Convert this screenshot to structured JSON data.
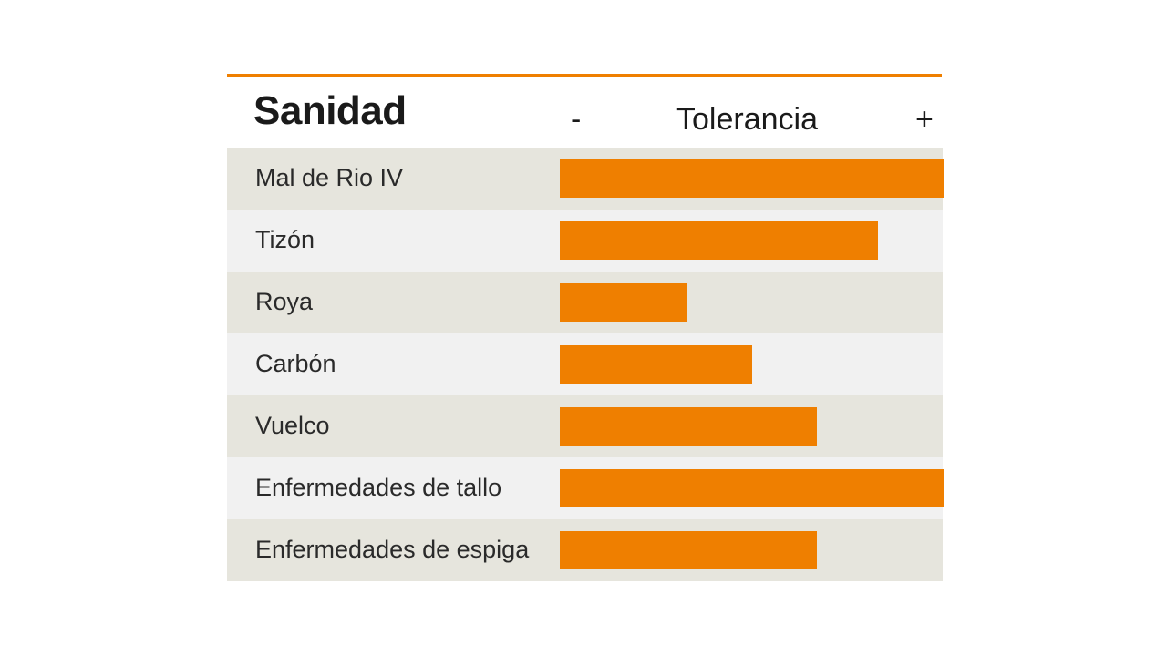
{
  "chart_data": {
    "type": "bar",
    "orientation": "horizontal",
    "title": "Sanidad",
    "scale": {
      "label": "Tolerancia",
      "min_label": "-",
      "max_label": "+"
    },
    "xlim": [
      0,
      100
    ],
    "categories": [
      "Mal de Rio IV",
      "Tizón",
      "Roya",
      "Carbón",
      "Vuelco",
      "Enfermedades de tallo",
      "Enfermedades de espiga"
    ],
    "values": [
      100,
      83,
      33,
      50,
      67,
      100,
      67
    ],
    "colors": {
      "bar": "#ef7f00",
      "row_shaded": "#e6e5dd",
      "row_light": "#f1f1f1",
      "rule": "#ef7f00"
    },
    "grid": false,
    "legend": "none"
  }
}
